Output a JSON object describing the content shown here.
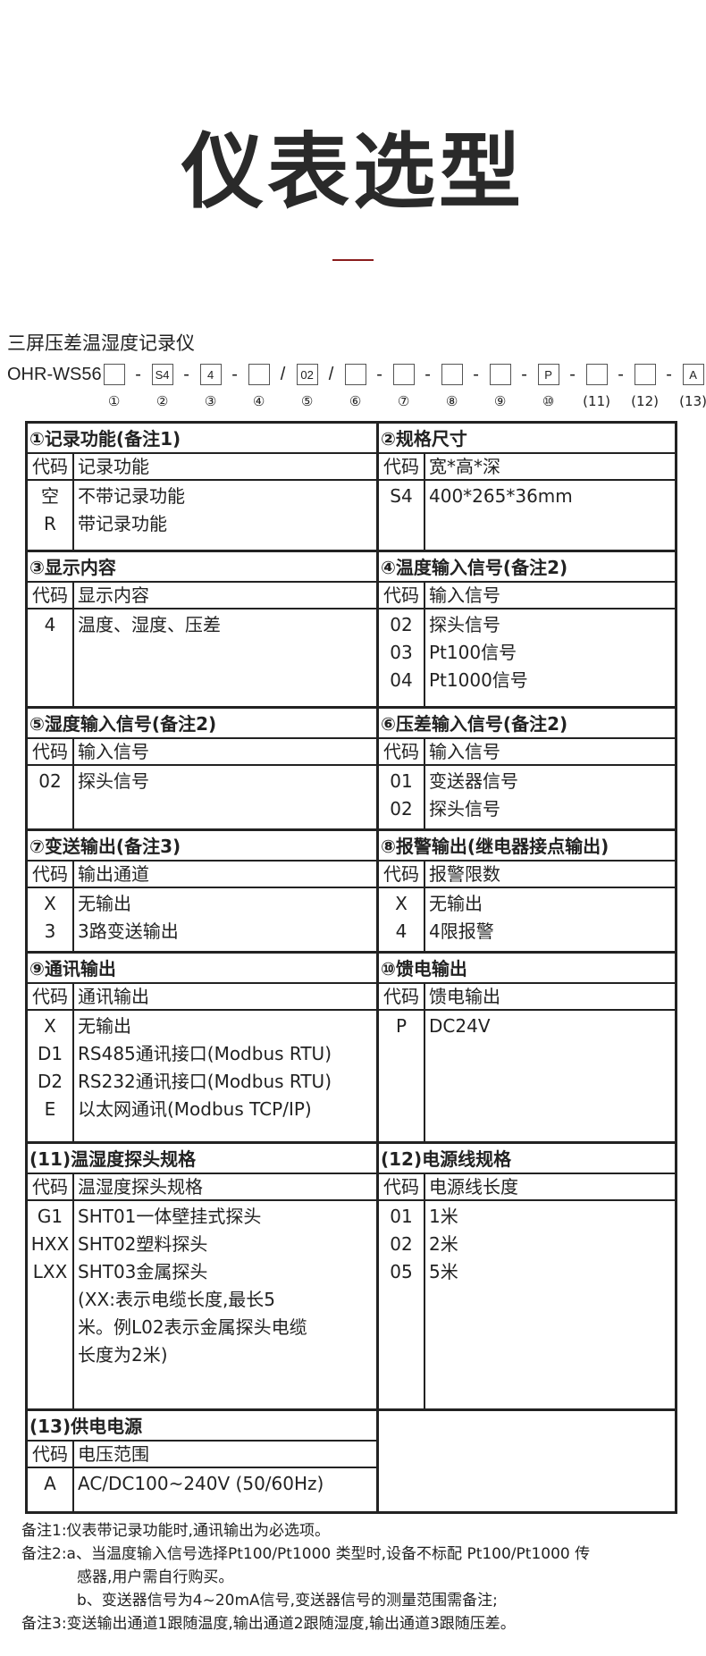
{
  "title": "仪表选型",
  "product_name": "三屏压差温湿度记录仪",
  "model": {
    "prefix": "OHR-WS56",
    "slots": [
      "",
      "S4",
      "4",
      "",
      "02",
      "",
      "",
      "",
      "",
      "P",
      "",
      "",
      "A"
    ],
    "separators": [
      "-",
      "-",
      "-",
      "/",
      "/",
      "-",
      "-",
      "-",
      "-",
      "-",
      "-",
      "-"
    ],
    "numbers": [
      "①",
      "②",
      "③",
      "④",
      "⑤",
      "⑥",
      "⑦",
      "⑧",
      "⑨",
      "⑩",
      "(11)",
      "(12)",
      "(13)"
    ]
  },
  "code_header": "代码",
  "sections": [
    {
      "title": "①记录功能(备注1)",
      "col": "记录功能",
      "rows": [
        {
          "code": "空",
          "desc": "不带记录功能"
        },
        {
          "code": "R",
          "desc": "带记录功能"
        }
      ]
    },
    {
      "title": "②规格尺寸",
      "col": "宽*高*深",
      "rows": [
        {
          "code": "S4",
          "desc": "400*265*36mm"
        }
      ]
    },
    {
      "title": "③显示内容",
      "col": "显示内容",
      "rows": [
        {
          "code": "4",
          "desc": "温度、湿度、压差"
        }
      ]
    },
    {
      "title": "④温度输入信号(备注2)",
      "col": "输入信号",
      "rows": [
        {
          "code": "02",
          "desc": "探头信号"
        },
        {
          "code": "03",
          "desc": "Pt100信号"
        },
        {
          "code": "04",
          "desc": "Pt1000信号"
        }
      ]
    },
    {
      "title": "⑤湿度输入信号(备注2)",
      "col": "输入信号",
      "rows": [
        {
          "code": "02",
          "desc": "探头信号"
        }
      ]
    },
    {
      "title": "⑥压差输入信号(备注2)",
      "col": "输入信号",
      "rows": [
        {
          "code": "01",
          "desc": "变送器信号"
        },
        {
          "code": "02",
          "desc": "探头信号"
        }
      ]
    },
    {
      "title": "⑦变送输出(备注3)",
      "col": "输出通道",
      "rows": [
        {
          "code": "X",
          "desc": "无输出"
        },
        {
          "code": "3",
          "desc": "3路变送输出"
        }
      ]
    },
    {
      "title": "⑧报警输出(继电器接点输出)",
      "col": "报警限数",
      "rows": [
        {
          "code": "X",
          "desc": "无输出"
        },
        {
          "code": "4",
          "desc": "4限报警"
        }
      ]
    },
    {
      "title": "⑨通讯输出",
      "col": "通讯输出",
      "rows": [
        {
          "code": "X",
          "desc": "无输出"
        },
        {
          "code": "D1",
          "desc": "RS485通讯接口(Modbus RTU)"
        },
        {
          "code": "D2",
          "desc": "RS232通讯接口(Modbus RTU)"
        },
        {
          "code": "E",
          "desc": "以太网通讯(Modbus TCP/IP)"
        }
      ]
    },
    {
      "title": "⑩馈电输出",
      "col": "馈电输出",
      "rows": [
        {
          "code": "P",
          "desc": "DC24V"
        }
      ]
    },
    {
      "title": "(11)温湿度探头规格",
      "col": "温湿度探头规格",
      "rows": [
        {
          "code": "G1",
          "desc": "SHT01一体壁挂式探头"
        },
        {
          "code": "HXX",
          "desc": "SHT02塑料探头"
        },
        {
          "code": "LXX",
          "desc": "SHT03金属探头"
        },
        {
          "code": "",
          "desc": "(XX:表示电缆长度,最长5"
        },
        {
          "code": "",
          "desc": "米。例L02表示金属探头电缆"
        },
        {
          "code": "",
          "desc": "长度为2米)"
        }
      ]
    },
    {
      "title": "(12)电源线规格",
      "col": "电源线长度",
      "rows": [
        {
          "code": "01",
          "desc": "1米"
        },
        {
          "code": "02",
          "desc": "2米"
        },
        {
          "code": "05",
          "desc": "5米"
        }
      ]
    },
    {
      "title": "(13)供电电源",
      "col": "电压范围",
      "rows": [
        {
          "code": "A",
          "desc": "AC/DC100~240V (50/60Hz)"
        }
      ]
    }
  ],
  "notes": [
    "备注1:仪表带记录功能时,通讯输出为必选项。",
    "备注2:a、当温度输入信号选择Pt100/Pt1000 类型时,设备不标配 Pt100/Pt1000 传",
    "感器,用户需自行购买。",
    "b、变送器信号为4~20mA信号,变送器信号的测量范围需备注;",
    "备注3:变送输出通道1跟随温度,输出通道2跟随湿度,输出通道3跟随压差。"
  ]
}
